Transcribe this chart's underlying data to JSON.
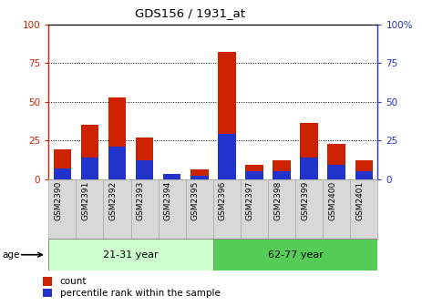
{
  "title": "GDS156 / 1931_at",
  "samples": [
    "GSM2390",
    "GSM2391",
    "GSM2392",
    "GSM2393",
    "GSM2394",
    "GSM2395",
    "GSM2396",
    "GSM2397",
    "GSM2398",
    "GSM2399",
    "GSM2400",
    "GSM2401"
  ],
  "count_values": [
    19,
    35,
    53,
    27,
    2,
    6,
    82,
    9,
    12,
    36,
    23,
    12
  ],
  "percentile_values": [
    7,
    14,
    21,
    12,
    3,
    2,
    29,
    5,
    5,
    14,
    9,
    5
  ],
  "group1_label": "21-31 year",
  "group2_label": "62-77 year",
  "group1_indices": [
    0,
    5
  ],
  "group2_indices": [
    6,
    11
  ],
  "bar_color_red": "#cc2200",
  "bar_color_blue": "#2233cc",
  "group1_bg": "#ccffcc",
  "group2_bg": "#55cc55",
  "tick_bg": "#d8d8d8",
  "tick_border": "#aaaaaa",
  "ylim": [
    0,
    100
  ],
  "yticks": [
    0,
    25,
    50,
    75,
    100
  ],
  "age_label": "age",
  "legend_count": "count",
  "legend_percentile": "percentile rank within the sample",
  "left_axis_color": "#cc2200",
  "right_axis_color": "#2233cc",
  "right_ytick_labels": [
    "0",
    "25",
    "50",
    "75",
    "100%"
  ],
  "top_border_color": "#000000",
  "right_border_color": "#000000"
}
